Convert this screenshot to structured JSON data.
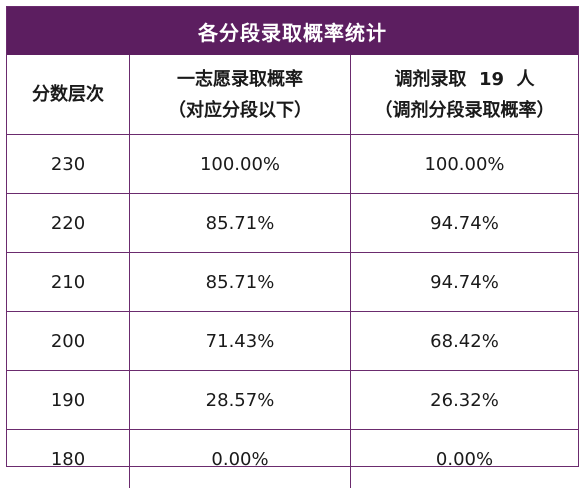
{
  "title": "各分段录取概率统计",
  "headers": {
    "col1": "分数层次",
    "col2_line1": "一志愿录取概率",
    "col2_line2": "（对应分段以下）",
    "col3_line1": "调剂录取  19  人",
    "col3_line2": "（调剂分段录取概率）"
  },
  "rows": [
    {
      "score": "230",
      "first_choice": "100.00%",
      "adjusted": "100.00%"
    },
    {
      "score": "220",
      "first_choice": "85.71%",
      "adjusted": "94.74%"
    },
    {
      "score": "210",
      "first_choice": "85.71%",
      "adjusted": "94.74%"
    },
    {
      "score": "200",
      "first_choice": "71.43%",
      "adjusted": "68.42%"
    },
    {
      "score": "190",
      "first_choice": "28.57%",
      "adjusted": "26.32%"
    },
    {
      "score": "180",
      "first_choice": "0.00%",
      "adjusted": "0.00%"
    }
  ],
  "colors": {
    "title_bg": "#5c1e60",
    "border": "#6b2b6e"
  }
}
